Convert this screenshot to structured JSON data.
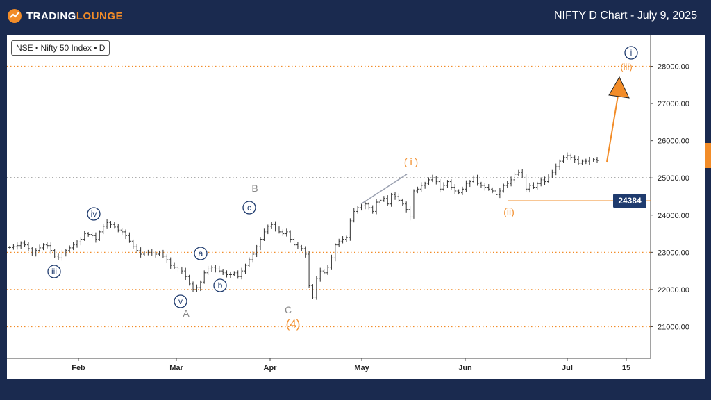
{
  "header": {
    "logo_part1": "TRADING",
    "logo_part2": "LOUNGE",
    "title": "NIFTY D Chart - July 9, 2025"
  },
  "legend": "NSE • Nifty 50 Index • D",
  "colors": {
    "background": "#1a2a4f",
    "accent": "#f28c28",
    "navy": "#1f3b6e",
    "gray_label": "#888888",
    "bar": "#333333"
  },
  "chart_data": {
    "type": "bar",
    "y_scale": "price",
    "ylim": [
      20150,
      28850
    ],
    "y_ticks": [
      "21000.00",
      "22000.00",
      "23000.00",
      "24000.00",
      "25000.00",
      "26000.00",
      "27000.00",
      "28000.00"
    ],
    "x_ticks": [
      "Feb",
      "Mar",
      "Apr",
      "May",
      "Jun",
      "Jul",
      "15"
    ],
    "price_label": "24384",
    "price_level": 24384,
    "dotted_orange_levels": [
      21000,
      22000,
      23000,
      28000
    ],
    "dotted_black_level": 25000,
    "series": [
      {
        "values": [
          23130,
          23150,
          23180,
          23250,
          23200,
          23100,
          22980,
          23050,
          23120,
          23200,
          23180,
          23050,
          22900,
          22850,
          22980,
          23050,
          23120,
          23200,
          23280,
          23350,
          23500,
          23480,
          23450,
          23350,
          23550,
          23700,
          23800,
          23750,
          23680,
          23600,
          23550,
          23450,
          23300,
          23150,
          23050,
          22950,
          22980,
          23000,
          22980,
          22950,
          22980,
          22900,
          22800,
          22650,
          22600,
          22550,
          22500,
          22350,
          22150,
          22000,
          22050,
          22200,
          22450,
          22550,
          22600,
          22550,
          22500,
          22450,
          22400,
          22400,
          22450,
          22350,
          22500,
          22650,
          22800,
          22950,
          23150,
          23350,
          23550,
          23700,
          23750,
          23650,
          23550,
          23500,
          23550,
          23350,
          23200,
          23150,
          23100,
          22950,
          22100,
          21800,
          22300,
          22500,
          22450,
          22600,
          22850,
          23200,
          23300,
          23350,
          23400,
          23850,
          24100,
          24200,
          24250,
          24300,
          24200,
          24100,
          24350,
          24400,
          24450,
          24300,
          24550,
          24500,
          24400,
          24300,
          24150,
          23950,
          24650,
          24700,
          24800,
          24850,
          24950,
          25000,
          24900,
          24700,
          24800,
          24900,
          24750,
          24650,
          24600,
          24700,
          24850,
          24900,
          25000,
          24850,
          24800,
          24750,
          24700,
          24650,
          24550,
          24650,
          24800,
          24850,
          24950,
          25100,
          25150,
          25050,
          24700,
          24800,
          24750,
          24850,
          24950,
          24900,
          25050,
          25150,
          25300,
          25450,
          25550,
          25600,
          25550,
          25500,
          25400,
          25450,
          25450,
          25480,
          25500,
          25470
        ],
        "name": ""
      }
    ]
  },
  "wave_labels": {
    "iii_small": "iii",
    "iv_small": "iv",
    "v_small": "v",
    "A": "A",
    "a": "a",
    "b": "b",
    "c": "c",
    "B": "B",
    "C": "C",
    "wave4": "(4)",
    "wave_i": "( i )",
    "wave_ii": "(ii)",
    "wave_iii": "(iii)",
    "wave_i_circle": "i"
  }
}
